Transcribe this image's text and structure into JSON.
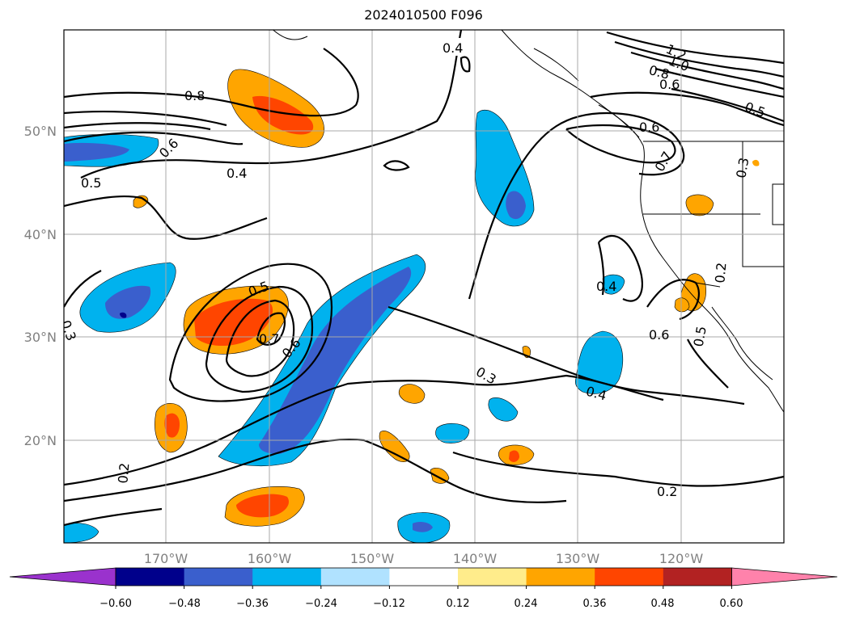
{
  "title": "2024010500 F096",
  "map": {
    "lon_ticks": [
      "170°W",
      "160°W",
      "150°W",
      "140°W",
      "130°W",
      "120°W"
    ],
    "lat_ticks": [
      "50°N",
      "40°N",
      "30°N",
      "20°N"
    ],
    "contour_labels": [
      "0.4",
      "1.2",
      "1.0",
      "0.8",
      "0.6",
      "0.5",
      "0.6",
      "0.7",
      "0.3",
      "0.8",
      "0.6",
      "0.5",
      "0.4",
      "0.3",
      "0.4",
      "0.6",
      "0.5",
      "0.5",
      "0.7",
      "0.6",
      "0.2",
      "0.3",
      "0.4",
      "0.2",
      "0.2"
    ],
    "colorbar": {
      "tick_labels": [
        "−0.60",
        "−0.48",
        "−0.36",
        "−0.24",
        "−0.12",
        "0.12",
        "0.24",
        "0.36",
        "0.48",
        "0.60"
      ],
      "colors": [
        "#9a32cd",
        "#00008b",
        "#3a5fcd",
        "#00b2ee",
        "#b0e2ff",
        "#ffffff",
        "#ffec8b",
        "#ffa500",
        "#ff4500",
        "#b22222",
        "#ff82ab"
      ]
    }
  }
}
